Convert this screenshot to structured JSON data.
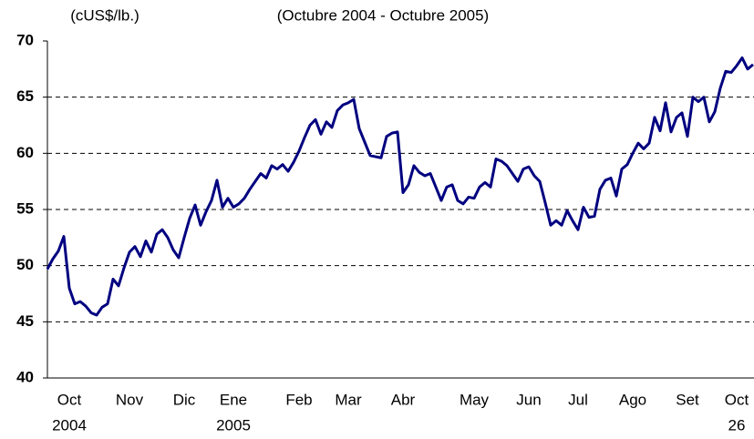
{
  "chart_data": {
    "type": "line",
    "unit_label": "(cUS$/lb.)",
    "title": "(Octubre 2004 - Octubre 2005)",
    "categories": [
      null,
      null,
      null,
      null,
      "Oct",
      null,
      null,
      null,
      null,
      null,
      null,
      null,
      null,
      null,
      null,
      "Nov",
      null,
      null,
      null,
      null,
      null,
      null,
      null,
      null,
      null,
      "Dic",
      null,
      null,
      null,
      null,
      null,
      null,
      null,
      null,
      "Ene",
      null,
      null,
      null,
      null,
      null,
      null,
      null,
      null,
      null,
      null,
      null,
      "Feb",
      null,
      null,
      null,
      null,
      null,
      null,
      null,
      null,
      "Mar",
      null,
      null,
      null,
      null,
      null,
      null,
      null,
      null,
      null,
      "Abr",
      null,
      null,
      null,
      null,
      null,
      null,
      null,
      null,
      null,
      null,
      null,
      null,
      "May",
      null,
      null,
      null,
      null,
      null,
      null,
      null,
      null,
      null,
      "Jun",
      null,
      null,
      null,
      null,
      null,
      null,
      null,
      null,
      "Jul",
      null,
      null,
      null,
      null,
      null,
      null,
      null,
      null,
      null,
      "Ago",
      null,
      null,
      null,
      null,
      null,
      null,
      null,
      null,
      null,
      "Set",
      null,
      null,
      null,
      null,
      null,
      null,
      null,
      null,
      "Oct",
      null,
      null,
      null
    ],
    "categories2": [
      null,
      null,
      null,
      null,
      "2004",
      null,
      null,
      null,
      null,
      null,
      null,
      null,
      null,
      null,
      null,
      null,
      null,
      null,
      null,
      null,
      null,
      null,
      null,
      null,
      null,
      null,
      null,
      null,
      null,
      null,
      null,
      null,
      null,
      null,
      "2005",
      null,
      null,
      null,
      null,
      null,
      null,
      null,
      null,
      null,
      null,
      null,
      null,
      null,
      null,
      null,
      null,
      null,
      null,
      null,
      null,
      null,
      null,
      null,
      null,
      null,
      null,
      null,
      null,
      null,
      null,
      null,
      null,
      null,
      null,
      null,
      null,
      null,
      null,
      null,
      null,
      null,
      null,
      null,
      null,
      null,
      null,
      null,
      null,
      null,
      null,
      null,
      null,
      null,
      null,
      null,
      null,
      null,
      null,
      null,
      null,
      null,
      null,
      null,
      null,
      null,
      null,
      null,
      null,
      null,
      null,
      null,
      null,
      null,
      null,
      null,
      null,
      null,
      null,
      null,
      null,
      null,
      null,
      null,
      null,
      null,
      null,
      null,
      null,
      null,
      null,
      null,
      "26",
      null,
      null,
      null
    ],
    "series": [
      {
        "name": null,
        "color": "#000080",
        "values": [
          49.7,
          50.6,
          51.3,
          52.6,
          48.0,
          46.6,
          46.8,
          46.4,
          45.8,
          45.6,
          46.3,
          46.6,
          48.8,
          48.2,
          49.8,
          51.2,
          51.7,
          50.8,
          52.2,
          51.2,
          52.8,
          53.2,
          52.5,
          51.4,
          50.7,
          52.5,
          54.2,
          55.4,
          53.6,
          54.8,
          55.8,
          57.6,
          55.2,
          56.0,
          55.2,
          55.5,
          56.0,
          56.8,
          57.5,
          58.2,
          57.8,
          58.9,
          58.6,
          59.0,
          58.4,
          59.2,
          60.2,
          61.4,
          62.5,
          63.0,
          61.7,
          62.8,
          62.3,
          63.8,
          64.3,
          64.5,
          64.8,
          62.2,
          61.0,
          59.8,
          59.7,
          59.6,
          61.5,
          61.8,
          61.9,
          56.5,
          57.2,
          58.9,
          58.3,
          58.0,
          58.2,
          57.0,
          55.8,
          57.0,
          57.2,
          55.8,
          55.5,
          56.1,
          56.0,
          57.0,
          57.4,
          57.0,
          59.5,
          59.3,
          58.9,
          58.2,
          57.5,
          58.6,
          58.8,
          58.0,
          57.5,
          55.6,
          53.6,
          54.0,
          53.6,
          54.9,
          54.0,
          53.2,
          55.2,
          54.3,
          54.4,
          56.8,
          57.6,
          57.8,
          56.2,
          58.6,
          59.0,
          60.0,
          60.9,
          60.4,
          60.9,
          63.2,
          62.0,
          64.5,
          61.9,
          63.2,
          63.6,
          61.5,
          65.0,
          64.6,
          65.0,
          62.8,
          63.7,
          65.8,
          67.3,
          67.2,
          67.8,
          68.5,
          67.5,
          67.9
        ]
      }
    ],
    "ylim": [
      40,
      70
    ],
    "yticks": [
      40,
      45,
      50,
      55,
      60,
      65,
      70
    ],
    "grid": true
  }
}
